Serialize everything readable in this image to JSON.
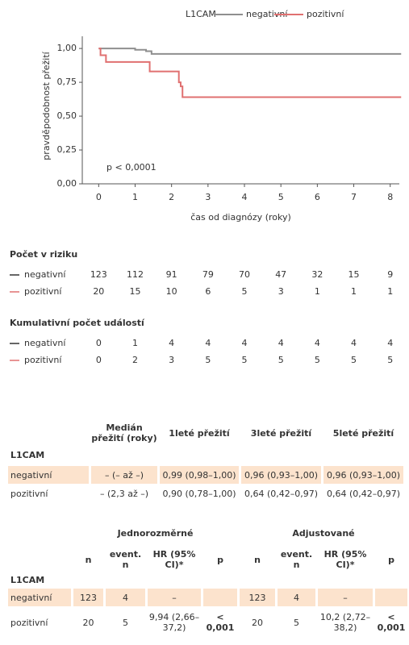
{
  "chart_data": {
    "type": "step",
    "legend_title": "L1CAM",
    "x_label": "čas od diagnózy (roky)",
    "y_label": "pravděpodobnost přežití",
    "annotation": "p < 0,0001",
    "xlim": [
      -0.45,
      8.25
    ],
    "xticks": [
      0,
      1,
      2,
      3,
      4,
      5,
      6,
      7,
      8
    ],
    "ylim": [
      0,
      1.09
    ],
    "yticks": [
      {
        "value": 0,
        "label": "0,00"
      },
      {
        "value": 0.25,
        "label": "0,25"
      },
      {
        "value": 0.5,
        "label": "0,50"
      },
      {
        "value": 0.75,
        "label": "0,75"
      },
      {
        "value": 1,
        "label": "1,00"
      }
    ],
    "legend": "top",
    "series": [
      {
        "name": "negativní",
        "color": "#8f8f8f",
        "x": [
          0,
          1.0,
          1.3,
          1.45,
          8.3
        ],
        "values": [
          1.0,
          0.99,
          0.98,
          0.96,
          0.96
        ]
      },
      {
        "name": "pozitivní",
        "color": "#e07070",
        "x": [
          0,
          0.05,
          0.2,
          1.4,
          2.2,
          2.25,
          2.3,
          8.3
        ],
        "values": [
          1.0,
          0.95,
          0.9,
          0.83,
          0.75,
          0.72,
          0.64,
          0.64
        ]
      }
    ]
  },
  "risk_table": {
    "title": "Počet v riziku",
    "rows": [
      {
        "label": "negativní",
        "values": [
          123,
          112,
          91,
          79,
          70,
          47,
          32,
          15,
          9
        ]
      },
      {
        "label": "pozitivní",
        "values": [
          20,
          15,
          10,
          6,
          5,
          3,
          1,
          1,
          1
        ]
      }
    ]
  },
  "events_table": {
    "title": "Kumulativní počet událostí",
    "rows": [
      {
        "label": "negativní",
        "values": [
          0,
          1,
          4,
          4,
          4,
          4,
          4,
          4,
          4
        ]
      },
      {
        "label": "pozitivní",
        "values": [
          0,
          2,
          3,
          5,
          5,
          5,
          5,
          5,
          5
        ]
      }
    ]
  },
  "survival_table": {
    "columns": [
      "Medián přežití (roky)",
      "1leté přežití",
      "3leté přežití",
      "5leté přežití"
    ],
    "group": "L1CAM",
    "rows": [
      [
        "negativní",
        "– (– až –)",
        "0,99 (0,98–1,00)",
        "0,96 (0,93–1,00)",
        "0,96 (0,93–1,00)"
      ],
      [
        "pozitivní",
        "– (2,3 až –)",
        "0,90 (0,78–1,00)",
        "0,64 (0,42–0,97)",
        "0,64 (0,42–0,97)"
      ]
    ]
  },
  "hr_table": {
    "groups": [
      "Jednorozměrné",
      "Adjustované"
    ],
    "columns": [
      "n",
      "event. n",
      "HR (95% CI)*",
      "p",
      "n",
      "event. n",
      "HR (95% CI)*",
      "p"
    ],
    "group": "L1CAM",
    "rows": [
      [
        "negativní",
        123,
        4,
        "–",
        null,
        123,
        4,
        "–",
        null
      ],
      [
        "pozitivní",
        20,
        5,
        "9,94 (2,66–37,2)",
        "< 0,001",
        20,
        5,
        "10,2 (2,72–38,2)",
        "< 0,001"
      ]
    ]
  }
}
